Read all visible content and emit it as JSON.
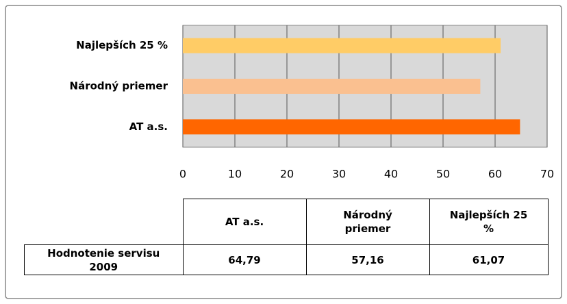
{
  "chart_data": {
    "type": "bar",
    "orientation": "horizontal",
    "categories": [
      "AT a.s.",
      "Národný priemer",
      "Najlepších 25 %"
    ],
    "series": [
      {
        "name": "Hodnotenie servisu 2009",
        "colors": [
          "#ff6600",
          "#fac090",
          "#ffcc66"
        ],
        "values": [
          64.79,
          57.16,
          61.07
        ],
        "value_labels": [
          "64,79",
          "57,16",
          "61,07"
        ]
      }
    ],
    "xlim": [
      0,
      70
    ],
    "xticks": [
      0,
      10,
      20,
      30,
      40,
      50,
      60,
      70
    ],
    "grid": true,
    "plot_background": "#d9d9d9"
  }
}
